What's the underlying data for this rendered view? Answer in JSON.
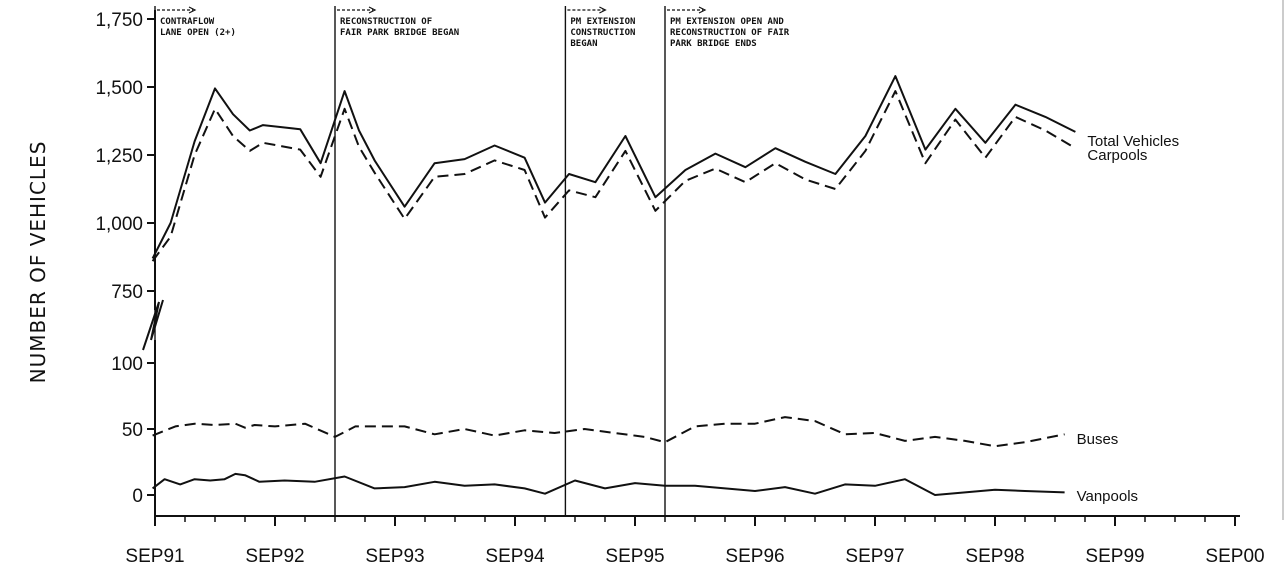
{
  "chart_data": {
    "type": "line",
    "ylabel": "NUMBER OF VEHICLES",
    "xlabel": "",
    "x_tick_labels": [
      "SEP91",
      "SEP92",
      "SEP93",
      "SEP94",
      "SEP95",
      "SEP96",
      "SEP97",
      "SEP98",
      "SEP99",
      "SEP00"
    ],
    "y_tick_labels_upper": [
      "750",
      "1,000",
      "1,250",
      "1,500",
      "1,750"
    ],
    "y_tick_labels_lower": [
      "0",
      "50",
      "100"
    ],
    "y_axis_break": true,
    "upper_segment_ylim": [
      750,
      1750
    ],
    "lower_segment_ylim": [
      0,
      100
    ],
    "series": [
      {
        "name": "Total Vehicles",
        "segment": "upper",
        "line_style": "solid",
        "points": [
          [
            1991.73,
            870
          ],
          [
            1991.88,
            1000
          ],
          [
            1992.08,
            1300
          ],
          [
            1992.25,
            1495
          ],
          [
            1992.4,
            1400
          ],
          [
            1992.54,
            1340
          ],
          [
            1992.65,
            1360
          ],
          [
            1992.96,
            1345
          ],
          [
            1993.13,
            1220
          ],
          [
            1993.33,
            1485
          ],
          [
            1993.45,
            1340
          ],
          [
            1993.58,
            1230
          ],
          [
            1993.83,
            1060
          ],
          [
            1994.08,
            1220
          ],
          [
            1994.33,
            1235
          ],
          [
            1994.58,
            1285
          ],
          [
            1994.83,
            1240
          ],
          [
            1995.0,
            1075
          ],
          [
            1995.2,
            1180
          ],
          [
            1995.42,
            1150
          ],
          [
            1995.67,
            1320
          ],
          [
            1995.92,
            1095
          ],
          [
            1996.17,
            1195
          ],
          [
            1996.42,
            1255
          ],
          [
            1996.67,
            1205
          ],
          [
            1996.92,
            1275
          ],
          [
            1997.17,
            1225
          ],
          [
            1997.42,
            1180
          ],
          [
            1997.67,
            1320
          ],
          [
            1997.92,
            1540
          ],
          [
            1998.17,
            1270
          ],
          [
            1998.42,
            1420
          ],
          [
            1998.67,
            1295
          ],
          [
            1998.92,
            1435
          ],
          [
            1999.17,
            1390
          ],
          [
            1999.42,
            1335
          ]
        ],
        "label_y": 1320
      },
      {
        "name": "Carpools",
        "segment": "upper",
        "line_style": "dashed",
        "points": [
          [
            1991.73,
            860
          ],
          [
            1991.88,
            950
          ],
          [
            1992.08,
            1250
          ],
          [
            1992.25,
            1420
          ],
          [
            1992.4,
            1320
          ],
          [
            1992.54,
            1265
          ],
          [
            1992.65,
            1295
          ],
          [
            1992.96,
            1270
          ],
          [
            1993.13,
            1170
          ],
          [
            1993.33,
            1420
          ],
          [
            1993.45,
            1280
          ],
          [
            1993.58,
            1185
          ],
          [
            1993.83,
            1015
          ],
          [
            1994.08,
            1170
          ],
          [
            1994.33,
            1180
          ],
          [
            1994.58,
            1230
          ],
          [
            1994.83,
            1195
          ],
          [
            1995.0,
            1020
          ],
          [
            1995.2,
            1120
          ],
          [
            1995.42,
            1095
          ],
          [
            1995.67,
            1265
          ],
          [
            1995.92,
            1045
          ],
          [
            1996.17,
            1155
          ],
          [
            1996.42,
            1200
          ],
          [
            1996.67,
            1150
          ],
          [
            1996.92,
            1220
          ],
          [
            1997.17,
            1160
          ],
          [
            1997.42,
            1125
          ],
          [
            1997.67,
            1265
          ],
          [
            1997.92,
            1485
          ],
          [
            1998.17,
            1220
          ],
          [
            1998.42,
            1380
          ],
          [
            1998.67,
            1240
          ],
          [
            1998.92,
            1390
          ],
          [
            1999.17,
            1340
          ],
          [
            1999.42,
            1275
          ]
        ],
        "label_y": 1265
      },
      {
        "name": "Buses",
        "segment": "lower",
        "line_style": "dashed",
        "points": [
          [
            1991.73,
            45
          ],
          [
            1991.92,
            52
          ],
          [
            1992.08,
            54
          ],
          [
            1992.25,
            53
          ],
          [
            1992.42,
            54
          ],
          [
            1992.5,
            51
          ],
          [
            1992.58,
            53
          ],
          [
            1992.75,
            52
          ],
          [
            1993.0,
            54
          ],
          [
            1993.25,
            44
          ],
          [
            1993.42,
            52
          ],
          [
            1993.67,
            52
          ],
          [
            1993.83,
            52
          ],
          [
            1994.08,
            46
          ],
          [
            1994.33,
            50
          ],
          [
            1994.58,
            45
          ],
          [
            1994.83,
            49
          ],
          [
            1995.08,
            47
          ],
          [
            1995.33,
            50
          ],
          [
            1995.58,
            47
          ],
          [
            1995.83,
            44
          ],
          [
            1996.0,
            40
          ],
          [
            1996.25,
            52
          ],
          [
            1996.5,
            54
          ],
          [
            1996.75,
            54
          ],
          [
            1997.0,
            59
          ],
          [
            1997.25,
            56
          ],
          [
            1997.5,
            46
          ],
          [
            1997.75,
            47
          ],
          [
            1998.0,
            41
          ],
          [
            1998.25,
            44
          ],
          [
            1998.5,
            41
          ],
          [
            1998.75,
            37
          ],
          [
            1999.0,
            40
          ],
          [
            1999.33,
            46
          ]
        ],
        "label_y": 46
      },
      {
        "name": "Vanpools",
        "segment": "lower",
        "line_style": "solid",
        "points": [
          [
            1991.73,
            5
          ],
          [
            1991.83,
            12
          ],
          [
            1991.96,
            8
          ],
          [
            1992.08,
            12
          ],
          [
            1992.21,
            11
          ],
          [
            1992.33,
            12
          ],
          [
            1992.42,
            16
          ],
          [
            1992.5,
            15
          ],
          [
            1992.62,
            10
          ],
          [
            1992.83,
            11
          ],
          [
            1993.08,
            10
          ],
          [
            1993.33,
            14
          ],
          [
            1993.58,
            5
          ],
          [
            1993.83,
            6
          ],
          [
            1994.08,
            10
          ],
          [
            1994.33,
            7
          ],
          [
            1994.58,
            8
          ],
          [
            1994.83,
            5
          ],
          [
            1995.0,
            1
          ],
          [
            1995.25,
            11
          ],
          [
            1995.5,
            5
          ],
          [
            1995.75,
            9
          ],
          [
            1996.0,
            7
          ],
          [
            1996.25,
            7
          ],
          [
            1996.5,
            5
          ],
          [
            1996.75,
            3
          ],
          [
            1997.0,
            6
          ],
          [
            1997.25,
            1
          ],
          [
            1997.5,
            8
          ],
          [
            1997.75,
            7
          ],
          [
            1998.0,
            12
          ],
          [
            1998.25,
            0
          ],
          [
            1998.5,
            2
          ],
          [
            1998.75,
            4
          ],
          [
            1999.0,
            3
          ],
          [
            1999.33,
            2
          ]
        ],
        "label_y": 0
      }
    ],
    "annotations": [
      {
        "x": 1991.75,
        "lines": [
          "CONTRAFLOW",
          "LANE OPEN (2+)"
        ]
      },
      {
        "x": 1993.25,
        "lines": [
          "RECONSTRUCTION OF",
          "FAIR PARK BRIDGE BEGAN"
        ]
      },
      {
        "x": 1995.17,
        "lines": [
          "PM EXTENSION",
          "CONSTRUCTION",
          "BEGAN"
        ]
      },
      {
        "x": 1996.0,
        "lines": [
          "PM EXTENSION OPEN AND",
          "RECONSTRUCTION OF FAIR",
          "PARK BRIDGE ENDS"
        ]
      }
    ],
    "legend": "none (series labeled at right end of lines)",
    "grid": false
  }
}
